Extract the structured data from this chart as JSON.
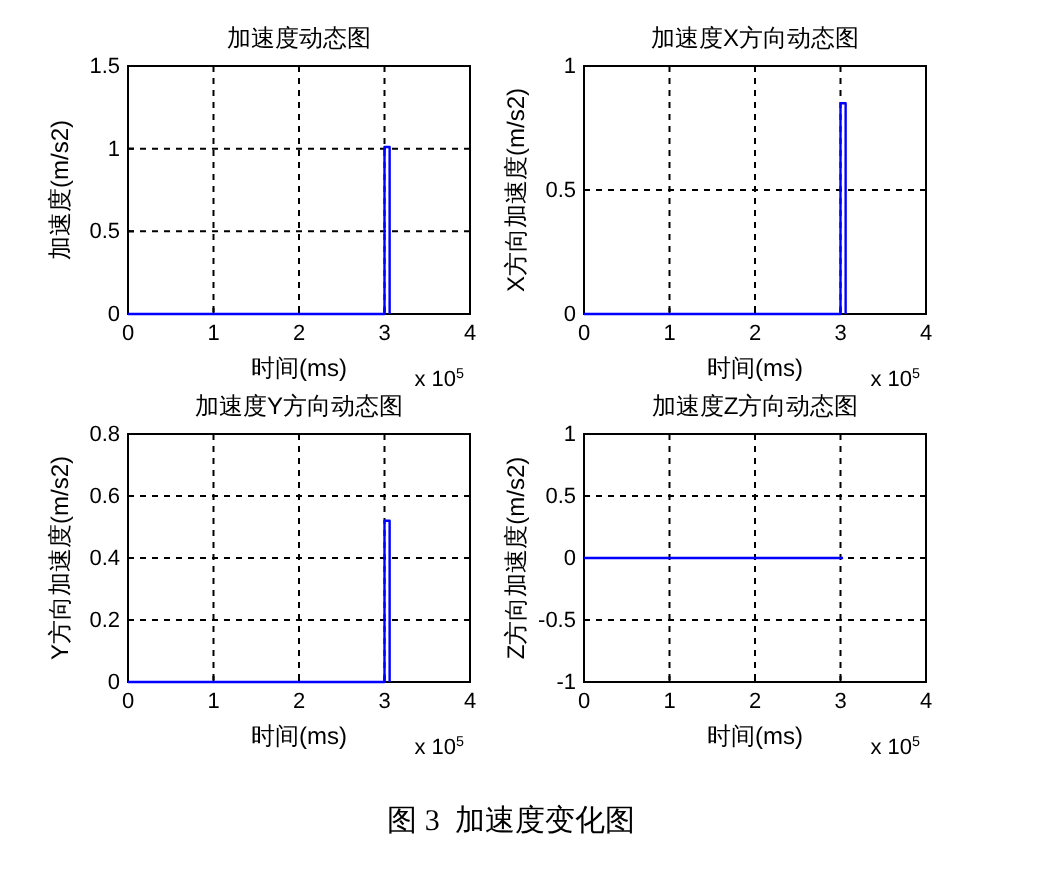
{
  "chart_data": [
    {
      "type": "line",
      "title": "加速度动态图",
      "xlabel": "时间(ms)",
      "ylabel": "加速度(m/s2)",
      "x": [
        0,
        3,
        3,
        3.06,
        3.06
      ],
      "values": [
        0,
        0,
        1.01,
        1.01,
        0
      ],
      "color": "#0000ff",
      "line_style": "solid",
      "xlim": [
        0,
        4
      ],
      "xticks": [
        0,
        1,
        2,
        3,
        4
      ],
      "ylim": [
        0,
        1.5
      ],
      "yticks": [
        0,
        0.5,
        1,
        1.5
      ],
      "grid": true,
      "annotations": [
        "x 10$^{5}$"
      ]
    },
    {
      "type": "line",
      "title": "加速度X方向动态图",
      "xlabel": "时间(ms)",
      "ylabel": "X方向加速度(m/s2)",
      "x": [
        0,
        3,
        3,
        3.06,
        3.06
      ],
      "values": [
        0,
        0,
        0.85,
        0.85,
        0
      ],
      "color": "#0000ff",
      "line_style": "solid",
      "xlim": [
        0,
        4
      ],
      "xticks": [
        0,
        1,
        2,
        3,
        4
      ],
      "ylim": [
        0,
        1
      ],
      "yticks": [
        0,
        0.5,
        1
      ],
      "grid": true,
      "annotations": [
        "x 10$^{5}$"
      ]
    },
    {
      "type": "line",
      "title": "加速度Y方向动态图",
      "xlabel": "时间(ms)",
      "ylabel": "Y方向加速度(m/s2)",
      "x": [
        0,
        3,
        3,
        3.06,
        3.06
      ],
      "values": [
        0,
        0,
        0.52,
        0.52,
        0
      ],
      "color": "#0000ff",
      "line_style": "solid",
      "xlim": [
        0,
        4
      ],
      "xticks": [
        0,
        1,
        2,
        3,
        4
      ],
      "ylim": [
        0,
        0.8
      ],
      "yticks": [
        0,
        0.2,
        0.4,
        0.6,
        0.8
      ],
      "grid": true,
      "annotations": [
        "x 10$^{5}$"
      ]
    },
    {
      "type": "line",
      "title": "加速度Z方向动态图",
      "xlabel": "时间(ms)",
      "ylabel": "Z方向加速度(m/s2)",
      "x": [
        0,
        3.03
      ],
      "values": [
        0,
        0
      ],
      "color": "#0000ff",
      "line_style": "solid",
      "xlim": [
        0,
        4
      ],
      "xticks": [
        0,
        1,
        2,
        3,
        4
      ],
      "ylim": [
        -1,
        1
      ],
      "yticks": [
        -1,
        -0.5,
        0,
        0.5,
        1
      ],
      "grid": true,
      "annotations": [
        "x 10$^{5}$",
        "图 3  加速度变化图"
      ]
    }
  ]
}
